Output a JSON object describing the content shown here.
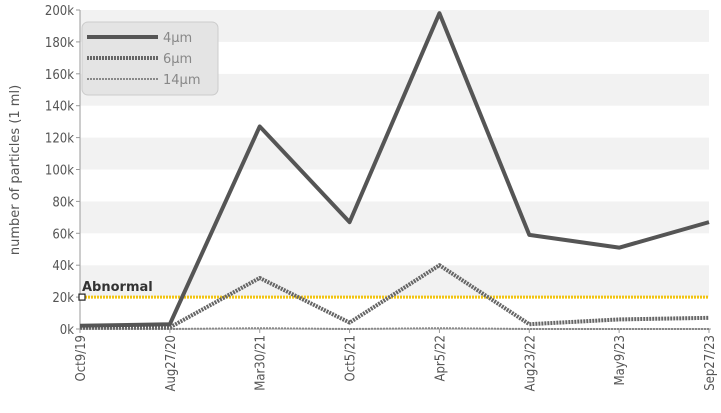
{
  "chart_data": {
    "type": "line",
    "ylabel": "number of particles (1 ml)",
    "xlabel": "",
    "ylim": [
      0,
      200000
    ],
    "yticks": [
      0,
      20000,
      40000,
      60000,
      80000,
      100000,
      120000,
      140000,
      160000,
      180000,
      200000
    ],
    "ytick_labels": [
      "0k",
      "20k",
      "40k",
      "60k",
      "80k",
      "100k",
      "120k",
      "140k",
      "160k",
      "180k",
      "200k"
    ],
    "categories": [
      "Oct9/19",
      "Aug27/20",
      "Mar30/21",
      "Oct5/21",
      "Apr5/22",
      "Aug23/22",
      "May9/23",
      "Sep27/23"
    ],
    "series": [
      {
        "name": "4μm",
        "style": "solid",
        "color": "#555555",
        "values": [
          2000,
          3000,
          127000,
          67000,
          198000,
          59000,
          51000,
          67000
        ]
      },
      {
        "name": "6μm",
        "style": "dotted",
        "color": "#666666",
        "values": [
          1000,
          1000,
          32000,
          4000,
          40000,
          3000,
          6000,
          7000
        ]
      },
      {
        "name": "14μm",
        "style": "thin-dotted",
        "color": "#888888",
        "values": [
          0,
          0,
          500,
          0,
          500,
          0,
          0,
          0
        ]
      }
    ],
    "threshold": {
      "label": "Abnormal",
      "value": 20000,
      "color": "#f2c40f"
    },
    "grid": "alternating horizontal bands",
    "legend_position": "top-left"
  }
}
